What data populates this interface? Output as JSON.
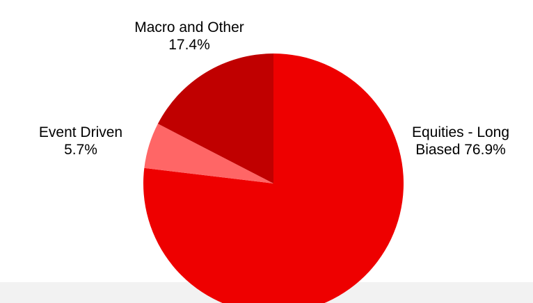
{
  "chart_data": {
    "type": "pie",
    "title": "",
    "slices": [
      {
        "label": "Equities - Long Biased",
        "label_lines": [
          "Equities - Long",
          "Biased 76.9%"
        ],
        "value": 76.9,
        "color": "#ee0000"
      },
      {
        "label": "Event Driven",
        "label_lines": [
          "Event Driven",
          "5.7%"
        ],
        "value": 5.7,
        "color": "#ff6666"
      },
      {
        "label": "Macro and Other",
        "label_lines": [
          "Macro and Other",
          "17.4%"
        ],
        "value": 17.4,
        "color": "#c00000"
      }
    ],
    "start_angle": "12 o'clock",
    "direction": "clockwise",
    "legend": "none",
    "data_labels": "outside, category and percent"
  }
}
